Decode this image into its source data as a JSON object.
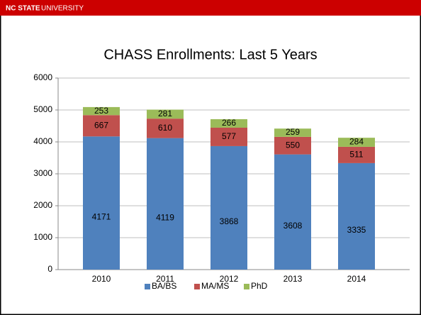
{
  "header": {
    "brand": "NC STATE",
    "name": "UNIVERSITY"
  },
  "chart_data": {
    "type": "stacked_bar",
    "title": "CHASS Enrollments: Last 5 Years",
    "categories": [
      "2010",
      "2011",
      "2012",
      "2013",
      "2014"
    ],
    "series": [
      {
        "name": "BA/BS",
        "color": "#4f81bd",
        "values": [
          4171,
          4119,
          3868,
          3608,
          3335
        ]
      },
      {
        "name": "MA/MS",
        "color": "#c0504d",
        "values": [
          667,
          610,
          577,
          550,
          511
        ]
      },
      {
        "name": "PhD",
        "color": "#9bbb59",
        "values": [
          253,
          281,
          266,
          259,
          284
        ]
      }
    ],
    "ylim": [
      0,
      6000
    ],
    "yticks": [
      0,
      1000,
      2000,
      3000,
      4000,
      5000,
      6000
    ],
    "grid": true,
    "legend": "bottom"
  }
}
